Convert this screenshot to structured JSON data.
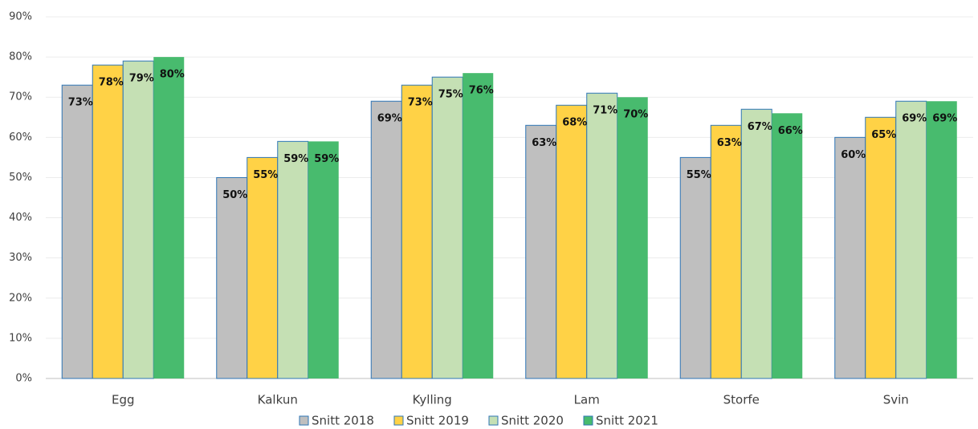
{
  "chart_data": {
    "type": "bar",
    "categories": [
      "Egg",
      "Kalkun",
      "Kylling",
      "Lam",
      "Storfe",
      "Svin"
    ],
    "series": [
      {
        "name": "Snitt 2018",
        "color": "#bfbfbf",
        "values": [
          73,
          50,
          69,
          63,
          55,
          60
        ],
        "value_labels": [
          "73%",
          "50%",
          "69%",
          "63%",
          "55%",
          "60%"
        ]
      },
      {
        "name": "Snitt 2019",
        "color": "#ffd246",
        "values": [
          78,
          55,
          73,
          68,
          63,
          65
        ],
        "value_labels": [
          "78%",
          "55%",
          "73%",
          "68%",
          "63%",
          "65%"
        ]
      },
      {
        "name": "Snitt 2020",
        "color": "#c5e0b4",
        "values": [
          79,
          59,
          75,
          71,
          67,
          69
        ],
        "value_labels": [
          "79%",
          "59%",
          "75%",
          "71%",
          "67%",
          "69%"
        ]
      },
      {
        "name": "Snitt 2021",
        "color": "#48bb6e",
        "values": [
          80,
          59,
          76,
          70,
          66,
          69
        ],
        "value_labels": [
          "80%",
          "59%",
          "76%",
          "70%",
          "66%",
          "69%"
        ]
      }
    ],
    "ylim": [
      0,
      90
    ],
    "yticks": [
      {
        "value": 0,
        "label": "0%"
      },
      {
        "value": 10,
        "label": "10%"
      },
      {
        "value": 20,
        "label": "20%"
      },
      {
        "value": 30,
        "label": "30%"
      },
      {
        "value": 40,
        "label": "40%"
      },
      {
        "value": 50,
        "label": "50%"
      },
      {
        "value": 60,
        "label": "60%"
      },
      {
        "value": 70,
        "label": "70%"
      },
      {
        "value": 80,
        "label": "80%"
      },
      {
        "value": 90,
        "label": "90%"
      }
    ],
    "grid": true,
    "legend": "bottom"
  }
}
